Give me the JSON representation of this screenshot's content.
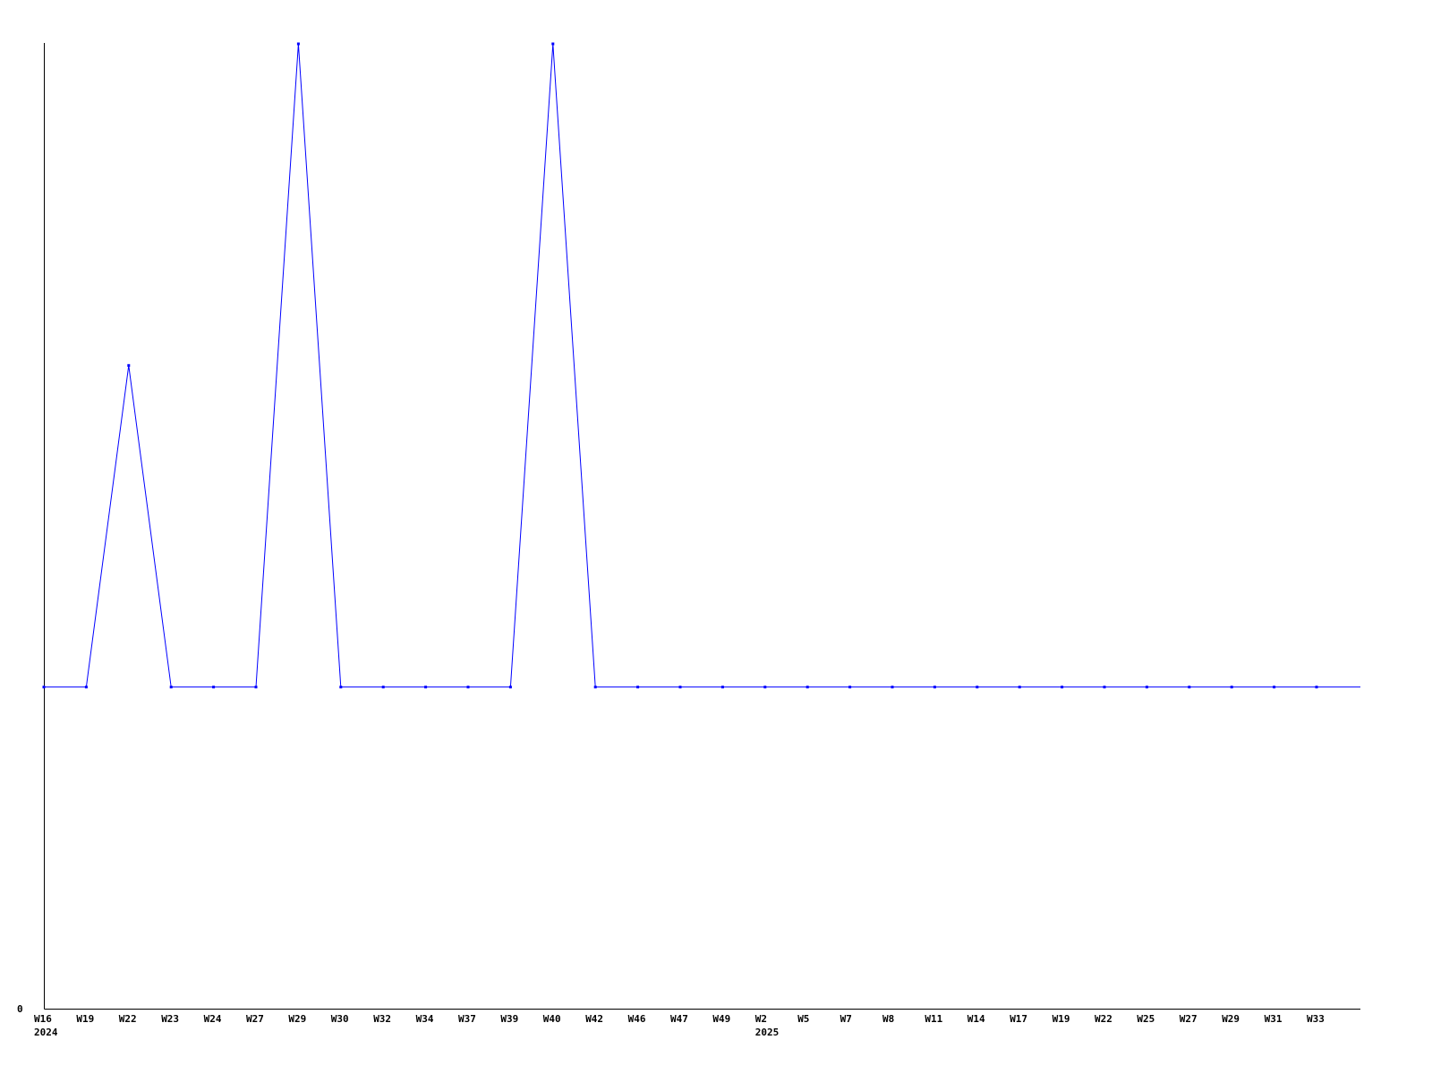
{
  "chart_data": {
    "type": "line",
    "title": "",
    "xlabel": "",
    "ylabel": "",
    "categories": [
      "W16",
      "W19",
      "W22",
      "W23",
      "W24",
      "W27",
      "W29",
      "W30",
      "W32",
      "W34",
      "W37",
      "W39",
      "W40",
      "W42",
      "W46",
      "W47",
      "W49",
      "W2",
      "W5",
      "W7",
      "W8",
      "W11",
      "W14",
      "W17",
      "W19",
      "W22",
      "W25",
      "W27",
      "W29",
      "W31",
      "W33"
    ],
    "year_labels": [
      {
        "index": 0,
        "label": "2024"
      },
      {
        "index": 17,
        "label": "2025"
      }
    ],
    "series": [
      {
        "values": [
          1,
          1,
          2,
          1,
          1,
          1,
          3,
          1,
          1,
          1,
          1,
          1,
          3,
          1,
          1,
          1,
          1,
          1,
          1,
          1,
          1,
          1,
          1,
          1,
          1,
          1,
          1,
          1,
          1,
          1,
          1
        ]
      }
    ],
    "ylim": [
      0,
      3
    ],
    "y_tick_labels": [
      "0"
    ],
    "grid": false,
    "colors": {
      "line": "#0000ff",
      "axis": "#000000"
    }
  }
}
